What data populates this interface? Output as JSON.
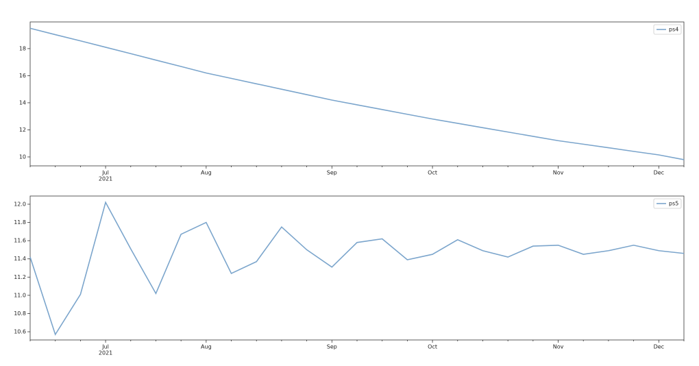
{
  "chart_data": [
    {
      "type": "line",
      "categories": [
        null,
        null,
        null,
        "Jul",
        null,
        null,
        null,
        "Aug",
        null,
        null,
        null,
        null,
        "Sep",
        null,
        null,
        null,
        "Oct",
        null,
        null,
        null,
        null,
        "Nov",
        null,
        null,
        null,
        "Dec",
        null
      ],
      "year": "2021",
      "series": [
        {
          "name": "ps4",
          "color": "#7ba5cc",
          "values": [
            19.5,
            19.03,
            18.57,
            18.1,
            17.63,
            17.15,
            16.68,
            16.2,
            15.8,
            15.4,
            15.0,
            14.6,
            14.2,
            13.85,
            13.5,
            13.15,
            12.8,
            12.48,
            12.16,
            11.84,
            11.52,
            11.2,
            10.94,
            10.68,
            10.41,
            10.15,
            9.8
          ]
        }
      ],
      "ylim": [
        9.34,
        19.97
      ],
      "yticks": [
        10,
        12,
        14,
        16,
        18
      ],
      "legend": "upper right"
    },
    {
      "type": "line",
      "categories": [
        null,
        null,
        null,
        "Jul",
        null,
        null,
        null,
        "Aug",
        null,
        null,
        null,
        null,
        "Sep",
        null,
        null,
        null,
        "Oct",
        null,
        null,
        null,
        null,
        "Nov",
        null,
        null,
        null,
        "Dec",
        null
      ],
      "year": "2021",
      "series": [
        {
          "name": "ps5",
          "color": "#7ba5cc",
          "values": [
            11.42,
            10.57,
            11.01,
            12.02,
            11.51,
            11.02,
            11.67,
            11.8,
            11.24,
            11.37,
            11.75,
            11.5,
            11.31,
            11.58,
            11.62,
            11.39,
            11.45,
            11.61,
            11.49,
            11.42,
            11.54,
            11.55,
            11.45,
            11.49,
            11.55,
            11.49,
            11.46
          ]
        }
      ],
      "ylim": [
        10.51,
        12.09
      ],
      "yticks": [
        {
          "value": 10.6,
          "label": "10.6"
        },
        {
          "value": 10.8,
          "label": "10.8"
        },
        {
          "value": 11.0,
          "label": "11.0"
        },
        {
          "value": 11.2,
          "label": "11.2"
        },
        {
          "value": 11.4,
          "label": "11.4"
        },
        {
          "value": 11.6,
          "label": "11.6"
        },
        {
          "value": 11.8,
          "label": "11.8"
        },
        {
          "value": 12.0,
          "label": "12.0"
        }
      ],
      "legend": "upper right"
    }
  ]
}
